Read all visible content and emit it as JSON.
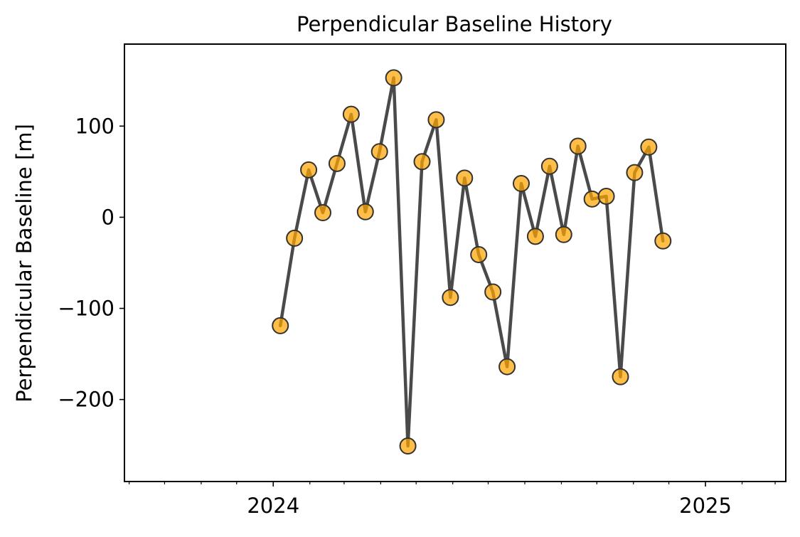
{
  "chart_data": {
    "type": "line",
    "title": "Perpendicular Baseline History",
    "xlabel": "",
    "ylabel": "Perpendicular Baseline [m]",
    "x_axis_type": "date",
    "xlim": [
      "2023-08-28",
      "2025-03-10"
    ],
    "ylim": [
      -290,
      190
    ],
    "yticks": [
      -200,
      -100,
      0,
      100
    ],
    "ytick_labels": [
      "−200",
      "−100",
      "0",
      "100"
    ],
    "xticks_major": [
      "2024-01-01",
      "2025-01-01"
    ],
    "xtick_labels": [
      "2024",
      "2025"
    ],
    "xticks_minor": [
      "2023-09-01",
      "2023-10-01",
      "2023-11-01",
      "2023-12-01",
      "2024-02-01",
      "2024-03-01",
      "2024-04-01",
      "2024-05-01",
      "2024-06-01",
      "2024-07-01",
      "2024-08-01",
      "2024-09-01",
      "2024-10-01",
      "2024-11-01",
      "2024-12-01",
      "2025-02-01",
      "2025-03-01"
    ],
    "grid": false,
    "line_color": "#404040",
    "marker_color": "#ffa500",
    "series": [
      {
        "x": [
          "2024-01-07",
          "2024-01-19",
          "2024-01-31",
          "2024-02-12",
          "2024-02-24",
          "2024-03-07",
          "2024-03-19",
          "2024-03-31",
          "2024-04-12",
          "2024-04-24",
          "2024-05-06",
          "2024-05-18",
          "2024-05-30",
          "2024-06-11",
          "2024-06-23",
          "2024-07-05",
          "2024-07-17",
          "2024-07-29",
          "2024-08-10",
          "2024-08-22",
          "2024-09-03",
          "2024-09-15",
          "2024-09-27",
          "2024-10-09",
          "2024-10-21",
          "2024-11-02",
          "2024-11-14",
          "2024-11-26",
          "2024-12-08",
          "2024-12-20",
          "2025-01-01"
        ],
        "y": [
          -119,
          -23,
          52,
          5,
          59,
          113,
          6,
          72,
          153,
          -251,
          61,
          107,
          -88,
          43,
          -41,
          -82,
          -164,
          37,
          -21,
          56,
          -19,
          78,
          20,
          23,
          -175,
          49,
          77,
          -26,
          null,
          null,
          null
        ]
      }
    ]
  }
}
